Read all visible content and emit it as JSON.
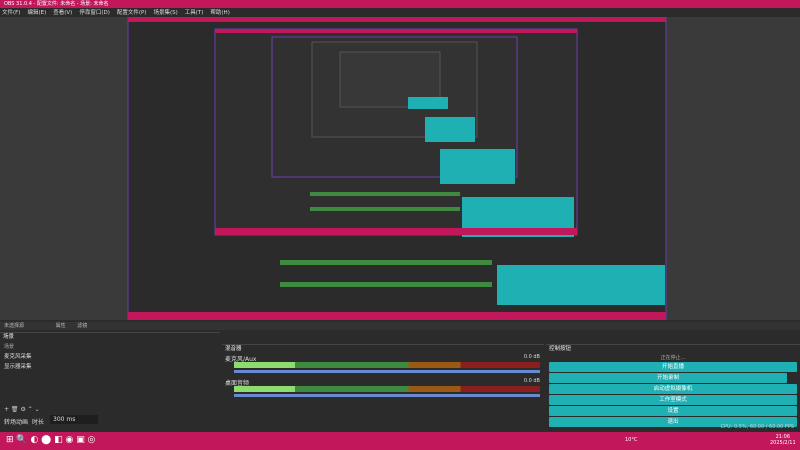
{
  "window": {
    "title": "OBS 31.0.4 - 配置文件: 未命名 - 场景: 未命名"
  },
  "menu": [
    "文件(F)",
    "编辑(E)",
    "查看(V)",
    "停靠窗口(D)",
    "配置文件(P)",
    "场景集(S)",
    "工具(T)",
    "帮助(H)"
  ],
  "source_bar": {
    "text": "未选择源",
    "properties": "属性",
    "filters": "滤镜"
  },
  "scenes": {
    "title": "场景",
    "items": [
      "场景"
    ]
  },
  "sources": {
    "items": [
      "麦克风采集",
      "显示器采集"
    ]
  },
  "transition": {
    "label": "转场动画",
    "duration_label": "时长",
    "duration": "300 ms"
  },
  "mixer": {
    "title": "混音器",
    "channels": [
      {
        "name": "麦克风/Aux",
        "level": "0.0 dB"
      },
      {
        "name": "桌面音频",
        "level": "0.0 dB"
      }
    ]
  },
  "controls": {
    "title": "控制按钮",
    "status": "正在停止...",
    "buttons": [
      "开始直播",
      "启动虚拟摄像机",
      "工作室模式",
      "设置",
      "退出"
    ],
    "record": "开始录制"
  },
  "status": {
    "cpu": "CPU: 0.5%, 60.00 / 60.00 FPS"
  },
  "taskbar": {
    "time": "21:06",
    "date": "2025/2/11",
    "weather": "10°C"
  }
}
